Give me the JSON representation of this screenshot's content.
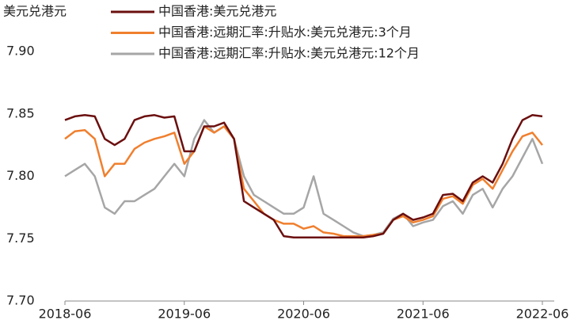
{
  "chart_data": {
    "type": "line",
    "y_label": "美元兑港元",
    "x": [
      "2018-06",
      "2018-07",
      "2018-08",
      "2018-09",
      "2018-10",
      "2018-11",
      "2018-12",
      "2019-01",
      "2019-02",
      "2019-03",
      "2019-04",
      "2019-05",
      "2019-06",
      "2019-07",
      "2019-08",
      "2019-09",
      "2019-10",
      "2019-11",
      "2019-12",
      "2020-01",
      "2020-02",
      "2020-03",
      "2020-04",
      "2020-05",
      "2020-06",
      "2020-07",
      "2020-08",
      "2020-09",
      "2020-10",
      "2020-11",
      "2020-12",
      "2021-01",
      "2021-02",
      "2021-03",
      "2021-04",
      "2021-05",
      "2021-06",
      "2021-07",
      "2021-08",
      "2021-09",
      "2021-10",
      "2021-11",
      "2021-12",
      "2022-01",
      "2022-02",
      "2022-03",
      "2022-04",
      "2022-05",
      "2022-06"
    ],
    "series": [
      {
        "name": "中国香港:美元兑港元",
        "color": "#6b0f0f",
        "values": [
          7.845,
          7.848,
          7.849,
          7.848,
          7.83,
          7.825,
          7.83,
          7.845,
          7.848,
          7.849,
          7.847,
          7.848,
          7.82,
          7.82,
          7.84,
          7.84,
          7.843,
          7.83,
          7.78,
          7.775,
          7.77,
          7.765,
          7.752,
          7.751,
          7.751,
          7.751,
          7.751,
          7.751,
          7.751,
          7.751,
          7.751,
          7.752,
          7.754,
          7.765,
          7.77,
          7.765,
          7.767,
          7.77,
          7.785,
          7.786,
          7.78,
          7.795,
          7.8,
          7.795,
          7.81,
          7.83,
          7.845,
          7.849,
          7.848
        ]
      },
      {
        "name": "中国香港:远期汇率:升贴水:美元兑港元:3个月",
        "color": "#f07f2e",
        "values": [
          7.83,
          7.836,
          7.837,
          7.83,
          7.8,
          7.81,
          7.81,
          7.822,
          7.827,
          7.83,
          7.832,
          7.835,
          7.81,
          7.82,
          7.84,
          7.835,
          7.84,
          7.83,
          7.79,
          7.78,
          7.77,
          7.765,
          7.762,
          7.762,
          7.758,
          7.76,
          7.755,
          7.754,
          7.752,
          7.752,
          7.752,
          7.753,
          7.754,
          7.765,
          7.768,
          7.763,
          7.765,
          7.768,
          7.782,
          7.784,
          7.778,
          7.793,
          7.798,
          7.79,
          7.805,
          7.82,
          7.832,
          7.835,
          7.825
        ]
      },
      {
        "name": "中国香港:远期汇率:升贴水:美元兑港元:12个月",
        "color": "#a6a6a6",
        "values": [
          7.8,
          7.805,
          7.81,
          7.8,
          7.775,
          7.77,
          7.78,
          7.78,
          7.785,
          7.79,
          7.8,
          7.81,
          7.8,
          7.83,
          7.845,
          7.835,
          7.84,
          7.83,
          7.8,
          7.785,
          7.78,
          7.775,
          7.77,
          7.77,
          7.775,
          7.8,
          7.77,
          7.765,
          7.76,
          7.755,
          7.752,
          7.753,
          7.755,
          7.766,
          7.77,
          7.76,
          7.763,
          7.765,
          7.776,
          7.78,
          7.77,
          7.785,
          7.79,
          7.775,
          7.79,
          7.8,
          7.815,
          7.83,
          7.81
        ]
      }
    ],
    "ylim": [
      7.7,
      7.9
    ],
    "yticks": [
      {
        "value": 7.9,
        "label": "7.90"
      },
      7.85,
      {
        "value": 7.8,
        "label": "7.80"
      },
      7.75,
      {
        "value": 7.7,
        "label": "7.70"
      }
    ],
    "xticks": [
      "2018-06",
      "2019-06",
      "2020-06",
      "2021-06",
      "2022-06"
    ]
  }
}
